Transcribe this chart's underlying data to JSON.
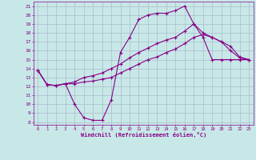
{
  "xlabel": "Windchill (Refroidissement éolien,°C)",
  "background_color": "#c8e8e8",
  "line_color": "#880088",
  "grid_color": "#aabbcc",
  "xlim": [
    -0.5,
    23.5
  ],
  "ylim": [
    7.7,
    21.5
  ],
  "xticks": [
    0,
    1,
    2,
    3,
    4,
    5,
    6,
    7,
    8,
    9,
    10,
    11,
    12,
    13,
    14,
    15,
    16,
    17,
    18,
    19,
    20,
    21,
    22,
    23
  ],
  "yticks": [
    8,
    9,
    10,
    11,
    12,
    13,
    14,
    15,
    16,
    17,
    18,
    19,
    20,
    21
  ],
  "curve1_x": [
    0,
    1,
    2,
    3,
    4,
    5,
    6,
    7,
    8,
    9,
    10,
    11,
    12,
    13,
    14,
    15,
    16,
    17,
    18,
    19,
    20,
    21,
    22,
    23
  ],
  "curve1_y": [
    13.8,
    12.2,
    12.1,
    12.3,
    10.0,
    8.5,
    8.2,
    8.2,
    10.5,
    15.8,
    17.5,
    19.5,
    20.0,
    20.2,
    20.2,
    20.5,
    21.0,
    19.0,
    17.5,
    15.0,
    15.0,
    15.0,
    15.0,
    15.0
  ],
  "curve2_x": [
    0,
    1,
    2,
    3,
    4,
    5,
    6,
    7,
    8,
    9,
    10,
    11,
    12,
    13,
    14,
    15,
    16,
    17,
    18,
    19,
    20,
    21,
    22,
    23
  ],
  "curve2_y": [
    13.8,
    12.2,
    12.1,
    12.3,
    12.5,
    13.0,
    13.2,
    13.5,
    14.0,
    14.5,
    15.2,
    15.8,
    16.3,
    16.8,
    17.2,
    17.5,
    18.2,
    19.0,
    18.0,
    17.5,
    17.0,
    16.5,
    15.3,
    15.0
  ],
  "curve3_x": [
    0,
    1,
    2,
    3,
    4,
    5,
    6,
    7,
    8,
    9,
    10,
    11,
    12,
    13,
    14,
    15,
    16,
    17,
    18,
    19,
    20,
    21,
    22,
    23
  ],
  "curve3_y": [
    13.8,
    12.2,
    12.1,
    12.3,
    12.3,
    12.5,
    12.6,
    12.8,
    13.0,
    13.5,
    14.0,
    14.5,
    15.0,
    15.3,
    15.8,
    16.2,
    16.8,
    17.5,
    17.8,
    17.5,
    17.0,
    16.0,
    15.2,
    15.0
  ]
}
